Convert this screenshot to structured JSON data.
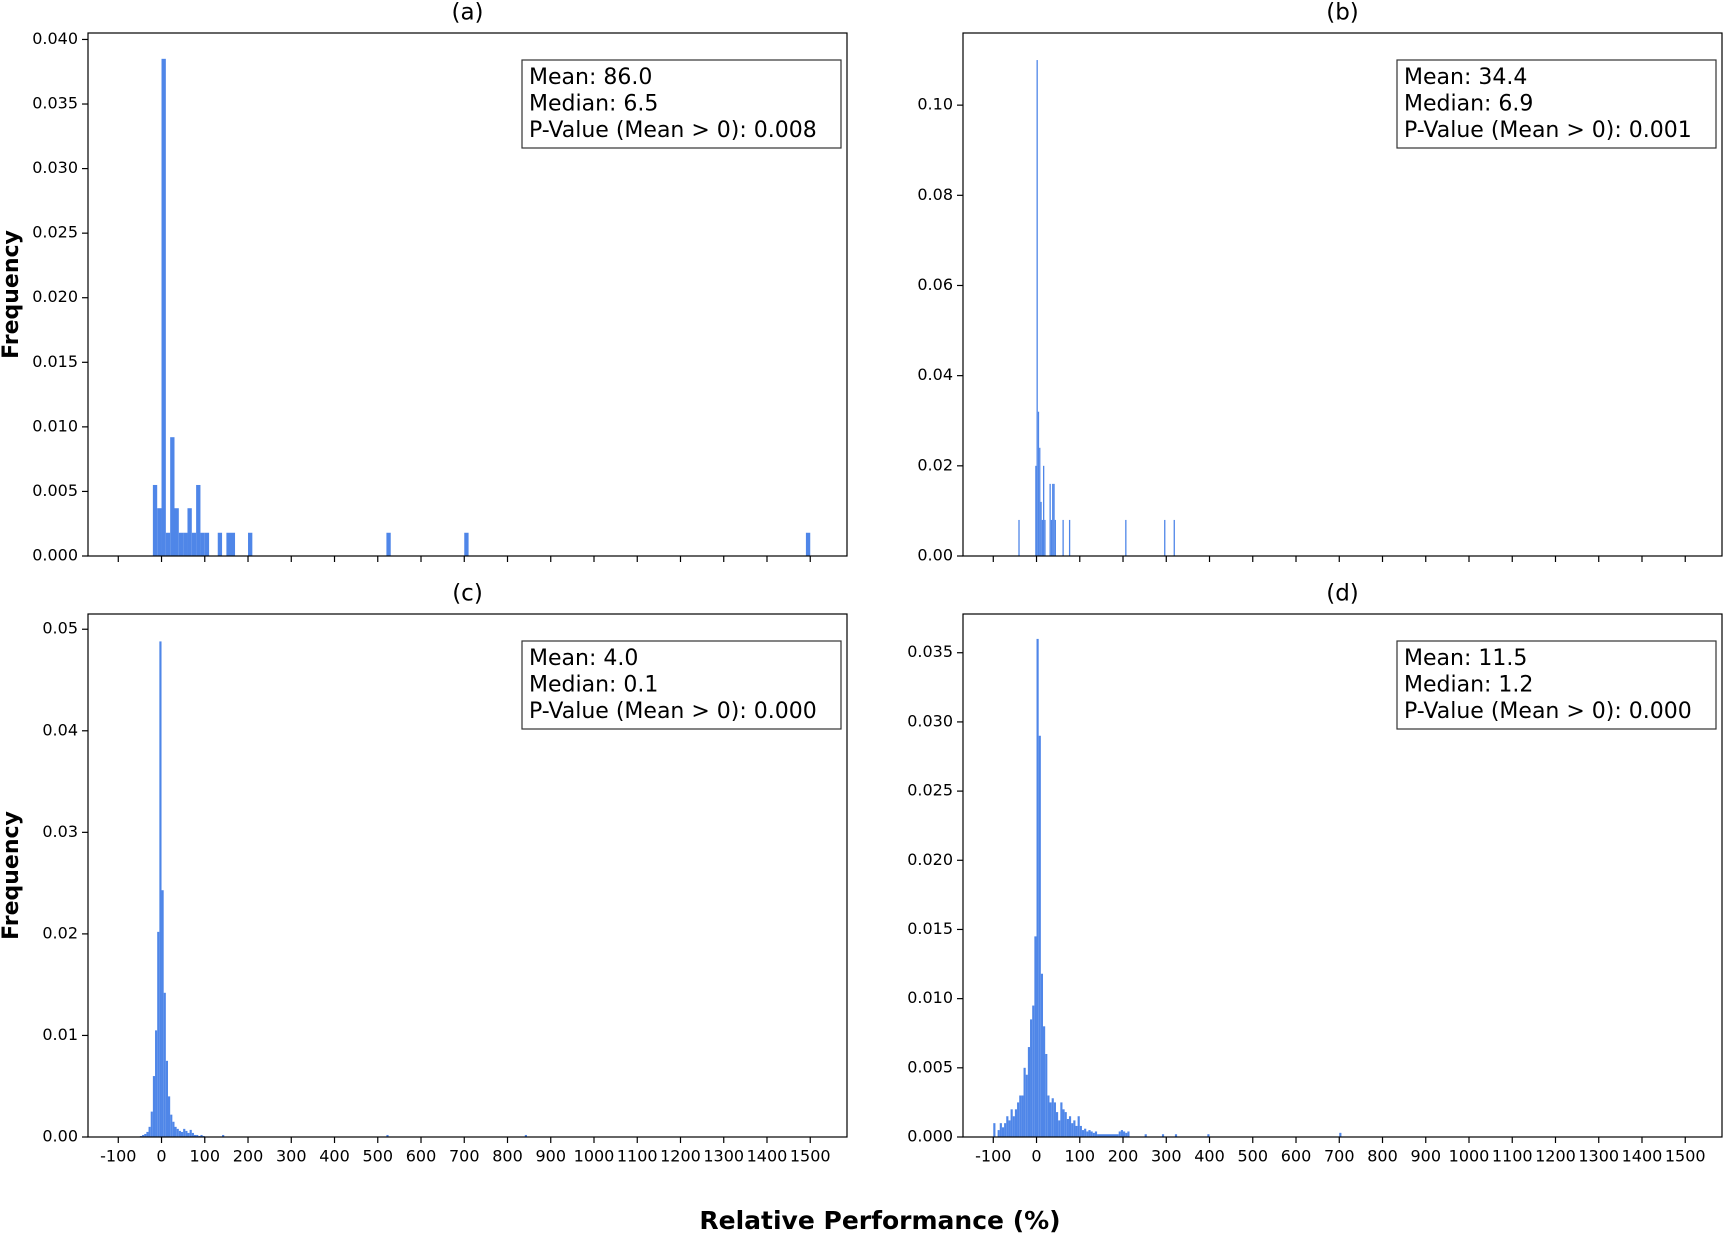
{
  "x_label": "Relative Performance (%)",
  "chart_data": [
    {
      "type": "histogram",
      "title": "(a)",
      "y_label": "Frequency",
      "color": "#4f86e8",
      "show_xtick_labels": false,
      "bins": [
        -20,
        -10,
        0,
        10,
        20,
        30,
        40,
        50,
        60,
        70,
        80,
        90,
        100,
        110,
        130,
        140,
        150,
        170,
        200,
        210,
        520,
        530,
        700,
        710,
        1490,
        1500
      ],
      "values": [
        0.0055,
        0.0037,
        0.0385,
        0.0018,
        0.0092,
        0.0037,
        0.0018,
        0.0018,
        0.0037,
        0.0018,
        0.0055,
        0.0018,
        0.0018,
        0,
        0.0018,
        0,
        0.0018,
        0,
        0.0018,
        0,
        0.0018,
        0,
        0.0018,
        0,
        0.0018
      ],
      "annotations": [
        "Mean: 86.0",
        "Median: 6.5",
        "P-Value (Mean > 0): 0.008"
      ],
      "xlim": [
        -170,
        1585
      ],
      "xticks": [
        -100,
        0,
        100,
        200,
        300,
        400,
        500,
        600,
        700,
        800,
        900,
        1000,
        1100,
        1200,
        1300,
        1400,
        1500
      ],
      "ylim": [
        0,
        0.0405
      ],
      "yticks": [
        {
          "value": 0,
          "label": "0.000"
        },
        {
          "value": 0.005,
          "label": "0.005"
        },
        {
          "value": 0.01,
          "label": "0.010"
        },
        {
          "value": 0.015,
          "label": "0.015"
        },
        {
          "value": 0.02,
          "label": "0.020"
        },
        {
          "value": 0.025,
          "label": "0.025"
        },
        {
          "value": 0.03,
          "label": "0.030"
        },
        {
          "value": 0.035,
          "label": "0.035"
        },
        {
          "value": 0.04,
          "label": "0.040"
        }
      ]
    },
    {
      "type": "histogram",
      "title": "(b)",
      "color": "#4f86e8",
      "show_xtick_labels": false,
      "bins": [
        -42,
        -39,
        -3,
        0,
        3,
        6,
        9,
        12,
        15,
        18,
        21,
        30,
        33,
        36,
        39,
        42,
        45,
        60,
        63,
        75,
        78,
        205,
        208,
        295,
        298,
        317,
        320
      ],
      "values": [
        0.008,
        0,
        0.02,
        0.11,
        0.032,
        0.024,
        0.012,
        0.008,
        0.02,
        0.008,
        0,
        0.016,
        0.008,
        0.016,
        0.016,
        0.008,
        0,
        0.008,
        0,
        0.008,
        0,
        0.008,
        0,
        0.008,
        0,
        0.008
      ],
      "annotations": [
        "Mean: 34.4",
        "Median: 6.9",
        "P-Value (Mean > 0): 0.001"
      ],
      "xlim": [
        -170,
        1585
      ],
      "xticks": [
        -100,
        0,
        100,
        200,
        300,
        400,
        500,
        600,
        700,
        800,
        900,
        1000,
        1100,
        1200,
        1300,
        1400,
        1500
      ],
      "ylim": [
        0,
        0.116
      ],
      "yticks": [
        {
          "value": 0,
          "label": "0.00"
        },
        {
          "value": 0.02,
          "label": "0.02"
        },
        {
          "value": 0.04,
          "label": "0.04"
        },
        {
          "value": 0.06,
          "label": "0.06"
        },
        {
          "value": 0.08,
          "label": "0.08"
        },
        {
          "value": 0.1,
          "label": "0.10"
        }
      ]
    },
    {
      "type": "histogram",
      "title": "(c)",
      "y_label": "Frequency",
      "color": "#4f86e8",
      "show_xtick_labels": true,
      "bins": [
        -50,
        -45,
        -40,
        -35,
        -30,
        -25,
        -20,
        -15,
        -10,
        -5,
        0,
        5,
        10,
        15,
        20,
        25,
        30,
        35,
        40,
        45,
        50,
        55,
        60,
        65,
        70,
        75,
        80,
        85,
        90,
        95,
        100,
        140,
        145,
        520,
        525,
        840,
        845
      ],
      "values": [
        0.0001,
        0.0002,
        0.0003,
        0.0005,
        0.001,
        0.0025,
        0.006,
        0.0105,
        0.0202,
        0.0488,
        0.0243,
        0.0142,
        0.0075,
        0.004,
        0.0022,
        0.0015,
        0.001,
        0.0008,
        0.0006,
        0.0005,
        0.0008,
        0.0006,
        0.0004,
        0.0007,
        0.0004,
        0.0002,
        0.0002,
        0.0001,
        0.0002,
        0.0001,
        0,
        0.0002,
        0,
        0.0002,
        0,
        0.0002
      ],
      "annotations": [
        "Mean: 4.0",
        "Median: 0.1",
        "P-Value (Mean > 0): 0.000"
      ],
      "xlim": [
        -170,
        1585
      ],
      "xticks": [
        -100,
        0,
        100,
        200,
        300,
        400,
        500,
        600,
        700,
        800,
        900,
        1000,
        1100,
        1200,
        1300,
        1400,
        1500
      ],
      "ylim": [
        0,
        0.0515
      ],
      "yticks": [
        {
          "value": 0,
          "label": "0.00"
        },
        {
          "value": 0.01,
          "label": "0.01"
        },
        {
          "value": 0.02,
          "label": "0.02"
        },
        {
          "value": 0.03,
          "label": "0.03"
        },
        {
          "value": 0.04,
          "label": "0.04"
        },
        {
          "value": 0.05,
          "label": "0.05"
        }
      ]
    },
    {
      "type": "histogram",
      "title": "(d)",
      "color": "#4f86e8",
      "show_xtick_labels": true,
      "bins": [
        -100,
        -95,
        -90,
        -85,
        -80,
        -75,
        -70,
        -65,
        -60,
        -55,
        -50,
        -45,
        -40,
        -35,
        -30,
        -25,
        -20,
        -15,
        -10,
        -5,
        0,
        5,
        10,
        15,
        20,
        25,
        30,
        35,
        40,
        45,
        50,
        55,
        60,
        65,
        70,
        75,
        80,
        85,
        90,
        95,
        100,
        105,
        110,
        115,
        120,
        125,
        130,
        135,
        140,
        190,
        195,
        200,
        205,
        210,
        215,
        250,
        255,
        290,
        295,
        320,
        325,
        395,
        400,
        700,
        705
      ],
      "values": [
        0.001,
        0,
        0.0005,
        0.001,
        0.0007,
        0.001,
        0.0015,
        0.0012,
        0.002,
        0.0015,
        0.002,
        0.0025,
        0.003,
        0.003,
        0.005,
        0.0045,
        0.0065,
        0.0085,
        0.0095,
        0.0145,
        0.036,
        0.029,
        0.0118,
        0.008,
        0.006,
        0.003,
        0.0025,
        0.0028,
        0.0025,
        0.0018,
        0.0012,
        0.0025,
        0.002,
        0.0018,
        0.0013,
        0.0015,
        0.001,
        0.0012,
        0.0008,
        0.0015,
        0.0008,
        0.0005,
        0.0006,
        0.0004,
        0.0005,
        0.0004,
        0.0003,
        0.0004,
        0.0002,
        0.0004,
        0.0005,
        0.0004,
        0.0003,
        0.0004,
        0,
        0.0002,
        0,
        0.0002,
        0,
        0.0002,
        0,
        0.0002,
        0,
        0.0003
      ],
      "annotations": [
        "Mean: 11.5",
        "Median: 1.2",
        "P-Value (Mean > 0): 0.000"
      ],
      "xlim": [
        -170,
        1585
      ],
      "xticks": [
        -100,
        0,
        100,
        200,
        300,
        400,
        500,
        600,
        700,
        800,
        900,
        1000,
        1100,
        1200,
        1300,
        1400,
        1500
      ],
      "ylim": [
        0,
        0.0378
      ],
      "yticks": [
        {
          "value": 0,
          "label": "0.000"
        },
        {
          "value": 0.005,
          "label": "0.005"
        },
        {
          "value": 0.01,
          "label": "0.010"
        },
        {
          "value": 0.015,
          "label": "0.015"
        },
        {
          "value": 0.02,
          "label": "0.020"
        },
        {
          "value": 0.025,
          "label": "0.025"
        },
        {
          "value": 0.03,
          "label": "0.030"
        },
        {
          "value": 0.035,
          "label": "0.035"
        }
      ]
    }
  ]
}
